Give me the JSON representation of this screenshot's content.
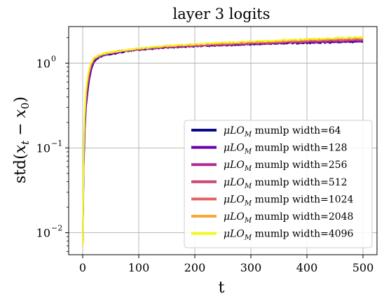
{
  "chart_data": {
    "type": "line",
    "title": "layer 3 logits",
    "xlabel": "t",
    "ylabel": "std(x_t − x_0)",
    "ylabel_parts": {
      "func": "std(",
      "var1": "x",
      "sub1": "t",
      "minus": " − ",
      "var2": "x",
      "sub2": "0",
      "close": ")"
    },
    "xlim": [
      -25,
      525
    ],
    "ylim": [
      0.0055,
      2.7
    ],
    "yscale": "log",
    "xticks": [
      0,
      100,
      200,
      300,
      400,
      500
    ],
    "xtick_labels": [
      "0",
      "100",
      "200",
      "300",
      "400",
      "500"
    ],
    "yticks": [
      0.01,
      0.1,
      1
    ],
    "ytick_labels": [
      {
        "base": "10",
        "exp": "−2"
      },
      {
        "base": "10",
        "exp": "−1"
      },
      {
        "base": "10",
        "exp": "0"
      }
    ],
    "grid": true,
    "legend_position": "lower-right",
    "x": [
      0,
      2,
      4,
      6,
      8,
      10,
      12,
      15,
      20,
      25,
      30,
      40,
      50,
      75,
      100,
      150,
      200,
      250,
      300,
      350,
      400,
      450,
      500
    ],
    "series": [
      {
        "name": "μLO_M mumlp width=64",
        "label_pre": "μLO",
        "label_sub": "M",
        "label_post": " mumlp width=64",
        "color": "#0d0887",
        "values": [
          0.007,
          0.06,
          0.17,
          0.3,
          0.4,
          0.52,
          0.65,
          0.82,
          1.02,
          1.12,
          1.18,
          1.24,
          1.28,
          1.37,
          1.44,
          1.53,
          1.58,
          1.62,
          1.66,
          1.7,
          1.73,
          1.76,
          1.79
        ]
      },
      {
        "name": "μLO_M mumlp width=128",
        "label_pre": "μLO",
        "label_sub": "M",
        "label_post": " mumlp width=128",
        "color": "#6a00a8",
        "values": [
          0.007,
          0.07,
          0.19,
          0.33,
          0.44,
          0.57,
          0.69,
          0.86,
          1.05,
          1.14,
          1.2,
          1.26,
          1.3,
          1.38,
          1.45,
          1.54,
          1.59,
          1.63,
          1.67,
          1.71,
          1.75,
          1.78,
          1.82
        ]
      },
      {
        "name": "μLO_M mumlp width=256",
        "label_pre": "μLO",
        "label_sub": "M",
        "label_post": " mumlp width=256",
        "color": "#b12a90",
        "values": [
          0.007,
          0.08,
          0.21,
          0.36,
          0.48,
          0.61,
          0.73,
          0.9,
          1.08,
          1.16,
          1.21,
          1.27,
          1.31,
          1.39,
          1.46,
          1.55,
          1.6,
          1.65,
          1.69,
          1.74,
          1.78,
          1.82,
          1.86
        ]
      },
      {
        "name": "μLO_M mumlp width=512",
        "label_pre": "μLO",
        "label_sub": "M",
        "label_post": " mumlp width=512",
        "color": "#cc4778",
        "values": [
          0.007,
          0.09,
          0.23,
          0.39,
          0.52,
          0.65,
          0.77,
          0.93,
          1.1,
          1.17,
          1.22,
          1.28,
          1.32,
          1.4,
          1.47,
          1.56,
          1.62,
          1.67,
          1.72,
          1.77,
          1.81,
          1.86,
          1.9
        ]
      },
      {
        "name": "μLO_M mumlp width=1024",
        "label_pre": "μLO",
        "label_sub": "M",
        "label_post": " mumlp width=1024",
        "color": "#e16462",
        "values": [
          0.007,
          0.1,
          0.25,
          0.42,
          0.56,
          0.69,
          0.81,
          0.96,
          1.12,
          1.18,
          1.23,
          1.29,
          1.33,
          1.41,
          1.48,
          1.58,
          1.64,
          1.7,
          1.75,
          1.8,
          1.85,
          1.9,
          1.95
        ]
      },
      {
        "name": "μLO_M mumlp width=2048",
        "label_pre": "μLO",
        "label_sub": "M",
        "label_post": " mumlp width=2048",
        "color": "#fca636",
        "values": [
          0.007,
          0.11,
          0.27,
          0.45,
          0.6,
          0.73,
          0.85,
          0.99,
          1.14,
          1.19,
          1.24,
          1.3,
          1.34,
          1.42,
          1.49,
          1.59,
          1.66,
          1.72,
          1.78,
          1.83,
          1.88,
          1.94,
          1.99
        ]
      },
      {
        "name": "μLO_M mumlp width=4096",
        "label_pre": "μLO",
        "label_sub": "M",
        "label_post": " mumlp width=4096",
        "color": "#f0f921",
        "values": [
          0.007,
          0.12,
          0.29,
          0.48,
          0.63,
          0.76,
          0.88,
          1.01,
          1.15,
          1.2,
          1.25,
          1.31,
          1.35,
          1.43,
          1.5,
          1.6,
          1.68,
          1.74,
          1.8,
          1.86,
          1.92,
          1.98,
          2.03
        ]
      }
    ]
  }
}
